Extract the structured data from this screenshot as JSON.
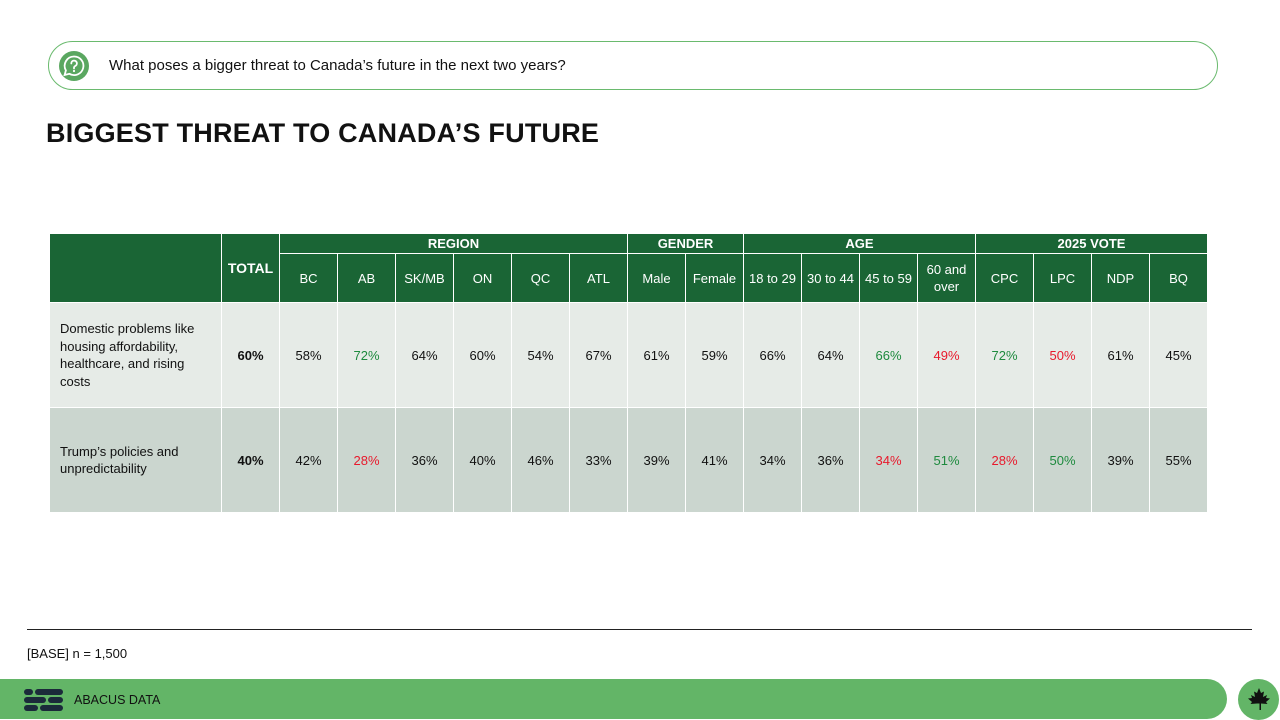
{
  "question": {
    "icon": "question-icon",
    "text": "What poses a bigger threat to Canada’s future in the next two years?"
  },
  "title": "BIGGEST THREAT TO CANADA’S FUTURE",
  "table": {
    "total_label": "TOTAL",
    "groups": [
      "REGION",
      "GENDER",
      "AGE",
      "2025 VOTE"
    ],
    "columns": [
      "BC",
      "AB",
      "SK/MB",
      "ON",
      "QC",
      "ATL",
      "Male",
      "Female",
      "18 to 29",
      "30 to 44",
      "45 to 59",
      "60 and over",
      "CPC",
      "LPC",
      "NDP",
      "BQ"
    ],
    "rows": [
      {
        "label": "Domestic problems like housing affordability, healthcare, and rising costs",
        "total": "60%",
        "values": [
          "58%",
          "72%",
          "64%",
          "60%",
          "54%",
          "67%",
          "61%",
          "59%",
          "66%",
          "64%",
          "66%",
          "49%",
          "72%",
          "50%",
          "61%",
          "45%"
        ]
      },
      {
        "label": "Trump’s policies and unpredictability",
        "total": "40%",
        "values": [
          "42%",
          "28%",
          "36%",
          "40%",
          "46%",
          "33%",
          "39%",
          "41%",
          "34%",
          "36%",
          "34%",
          "51%",
          "28%",
          "50%",
          "39%",
          "55%"
        ]
      }
    ],
    "highlight_colors": {
      "above": "#1e8a3e",
      "below": "#e8192c"
    }
  },
  "base_note": "[BASE] n = 1,500",
  "footer": {
    "brand": "ABACUS DATA",
    "logo_icon": "abacus-logo-icon",
    "leaf_icon": "maple-leaf-icon",
    "bar_color": "#63b567",
    "header_color": "#1a6535"
  }
}
